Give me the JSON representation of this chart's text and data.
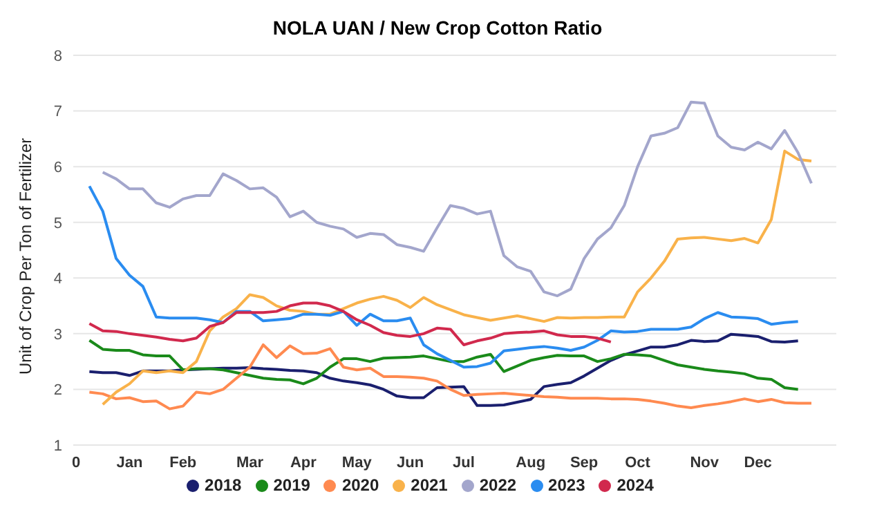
{
  "chart_data": {
    "type": "line",
    "title": "NOLA UAN / New Crop Cotton Ratio",
    "ylabel": "Unit of Crop Per Ton of Fertilizer",
    "categories": [
      "0",
      null,
      null,
      null,
      "Jan",
      null,
      null,
      null,
      "Feb",
      null,
      null,
      null,
      null,
      "Mar",
      null,
      null,
      null,
      "Apr",
      null,
      null,
      null,
      "May",
      null,
      null,
      null,
      "Jun",
      null,
      null,
      null,
      "Jul",
      null,
      null,
      null,
      null,
      "Aug",
      null,
      null,
      null,
      "Sep",
      null,
      null,
      null,
      "Oct",
      null,
      null,
      null,
      null,
      "Nov",
      null,
      null,
      null,
      "Dec",
      null,
      null,
      null,
      null
    ],
    "ylim": [
      1,
      8
    ],
    "yticks": [
      1,
      2,
      3,
      4,
      5,
      6,
      7,
      8
    ],
    "grid": "y",
    "legend": "bottom",
    "marker": "none",
    "line_style": "solid",
    "series": [
      {
        "name": "2018",
        "color": "#1a1f6e",
        "values": [
          null,
          2.32,
          2.3,
          2.3,
          2.25,
          2.33,
          2.33,
          2.33,
          2.35,
          2.36,
          2.37,
          2.38,
          2.38,
          2.39,
          2.37,
          2.36,
          2.34,
          2.33,
          2.3,
          2.2,
          2.15,
          2.12,
          2.08,
          2,
          1.88,
          1.85,
          1.85,
          2.03,
          2.04,
          2.05,
          1.71,
          1.71,
          1.72,
          1.77,
          1.82,
          2.05,
          2.09,
          2.12,
          2.24,
          2.38,
          2.52,
          2.62,
          2.69,
          2.76,
          2.76,
          2.8,
          2.88,
          2.86,
          2.87,
          2.99,
          2.97,
          2.95,
          2.86,
          2.85,
          2.87,
          null
        ]
      },
      {
        "name": "2019",
        "color": "#1a8a1a",
        "values": [
          null,
          2.88,
          2.72,
          2.7,
          2.7,
          2.62,
          2.6,
          2.6,
          2.35,
          2.37,
          2.37,
          2.35,
          2.3,
          2.25,
          2.2,
          2.18,
          2.17,
          2.1,
          2.2,
          2.4,
          2.55,
          2.55,
          2.5,
          2.56,
          2.57,
          2.58,
          2.6,
          2.55,
          2.5,
          2.5,
          2.58,
          2.63,
          2.32,
          2.42,
          2.52,
          2.57,
          2.61,
          2.6,
          2.6,
          2.5,
          2.55,
          2.63,
          2.62,
          2.6,
          2.52,
          2.44,
          2.4,
          2.36,
          2.33,
          2.31,
          2.28,
          2.2,
          2.18,
          2.03,
          2,
          null
        ]
      },
      {
        "name": "2020",
        "color": "#ff8a50",
        "values": [
          null,
          1.95,
          1.92,
          1.83,
          1.85,
          1.78,
          1.79,
          1.65,
          1.7,
          1.95,
          1.92,
          2,
          2.2,
          2.4,
          2.8,
          2.57,
          2.78,
          2.64,
          2.65,
          2.73,
          2.4,
          2.35,
          2.38,
          2.23,
          2.23,
          2.22,
          2.2,
          2.15,
          2,
          1.89,
          1.91,
          1.92,
          1.93,
          1.91,
          1.89,
          1.87,
          1.86,
          1.84,
          1.84,
          1.84,
          1.83,
          1.83,
          1.82,
          1.79,
          1.75,
          1.7,
          1.67,
          1.71,
          1.74,
          1.78,
          1.83,
          1.78,
          1.82,
          1.76,
          1.75,
          1.75
        ]
      },
      {
        "name": "2021",
        "color": "#f9b24a",
        "values": [
          null,
          null,
          1.73,
          1.95,
          2.1,
          2.33,
          2.3,
          2.33,
          2.3,
          2.5,
          3.05,
          3.3,
          3.45,
          3.7,
          3.65,
          3.5,
          3.42,
          3.4,
          3.35,
          3.35,
          3.45,
          3.55,
          3.62,
          3.67,
          3.6,
          3.47,
          3.65,
          3.52,
          3.43,
          3.34,
          3.29,
          3.24,
          3.28,
          3.32,
          3.27,
          3.22,
          3.29,
          3.28,
          3.29,
          3.29,
          3.3,
          3.3,
          3.75,
          4,
          4.3,
          4.7,
          4.72,
          4.73,
          4.7,
          4.67,
          4.71,
          4.63,
          5.05,
          6.28,
          6.13,
          6.1
        ]
      },
      {
        "name": "2022",
        "color": "#a3a6cc",
        "values": [
          null,
          null,
          5.9,
          5.78,
          5.6,
          5.6,
          5.35,
          5.27,
          5.42,
          5.48,
          5.48,
          5.87,
          5.75,
          5.6,
          5.62,
          5.45,
          5.1,
          5.2,
          5,
          4.93,
          4.88,
          4.73,
          4.8,
          4.78,
          4.6,
          4.55,
          4.48,
          4.9,
          5.3,
          5.25,
          5.15,
          5.2,
          4.4,
          4.2,
          4.12,
          3.75,
          3.68,
          3.8,
          4.35,
          4.7,
          4.9,
          5.3,
          6,
          6.55,
          6.6,
          6.7,
          7.16,
          7.14,
          6.55,
          6.35,
          6.3,
          6.44,
          6.32,
          6.65,
          6.25,
          5.7
        ]
      },
      {
        "name": "2023",
        "color": "#2a8cf0",
        "values": [
          null,
          5.65,
          5.2,
          4.35,
          4.05,
          3.85,
          3.3,
          3.28,
          3.28,
          3.28,
          3.25,
          3.2,
          3.4,
          3.4,
          3.23,
          3.25,
          3.27,
          3.35,
          3.35,
          3.33,
          3.4,
          3.15,
          3.35,
          3.23,
          3.23,
          3.28,
          2.8,
          2.64,
          2.52,
          2.4,
          2.41,
          2.47,
          2.69,
          2.72,
          2.75,
          2.77,
          2.74,
          2.7,
          2.76,
          2.88,
          3.05,
          3.03,
          3.04,
          3.08,
          3.08,
          3.08,
          3.12,
          3.27,
          3.38,
          3.3,
          3.29,
          3.27,
          3.17,
          3.2,
          3.22,
          null
        ]
      },
      {
        "name": "2024",
        "color": "#d1294d",
        "values": [
          null,
          3.18,
          3.05,
          3.04,
          3,
          2.97,
          2.94,
          2.9,
          2.87,
          2.92,
          3.13,
          3.2,
          3.38,
          3.38,
          3.38,
          3.4,
          3.5,
          3.55,
          3.55,
          3.5,
          3.4,
          3.25,
          3.15,
          3.02,
          2.97,
          2.95,
          3,
          3.1,
          3.08,
          2.8,
          2.87,
          2.92,
          3,
          3.02,
          3.03,
          3.05,
          2.98,
          2.95,
          2.95,
          2.92,
          2.85,
          null,
          null,
          null,
          null,
          null,
          null,
          null,
          null,
          null,
          null,
          null,
          null,
          null,
          null,
          null
        ]
      }
    ]
  }
}
